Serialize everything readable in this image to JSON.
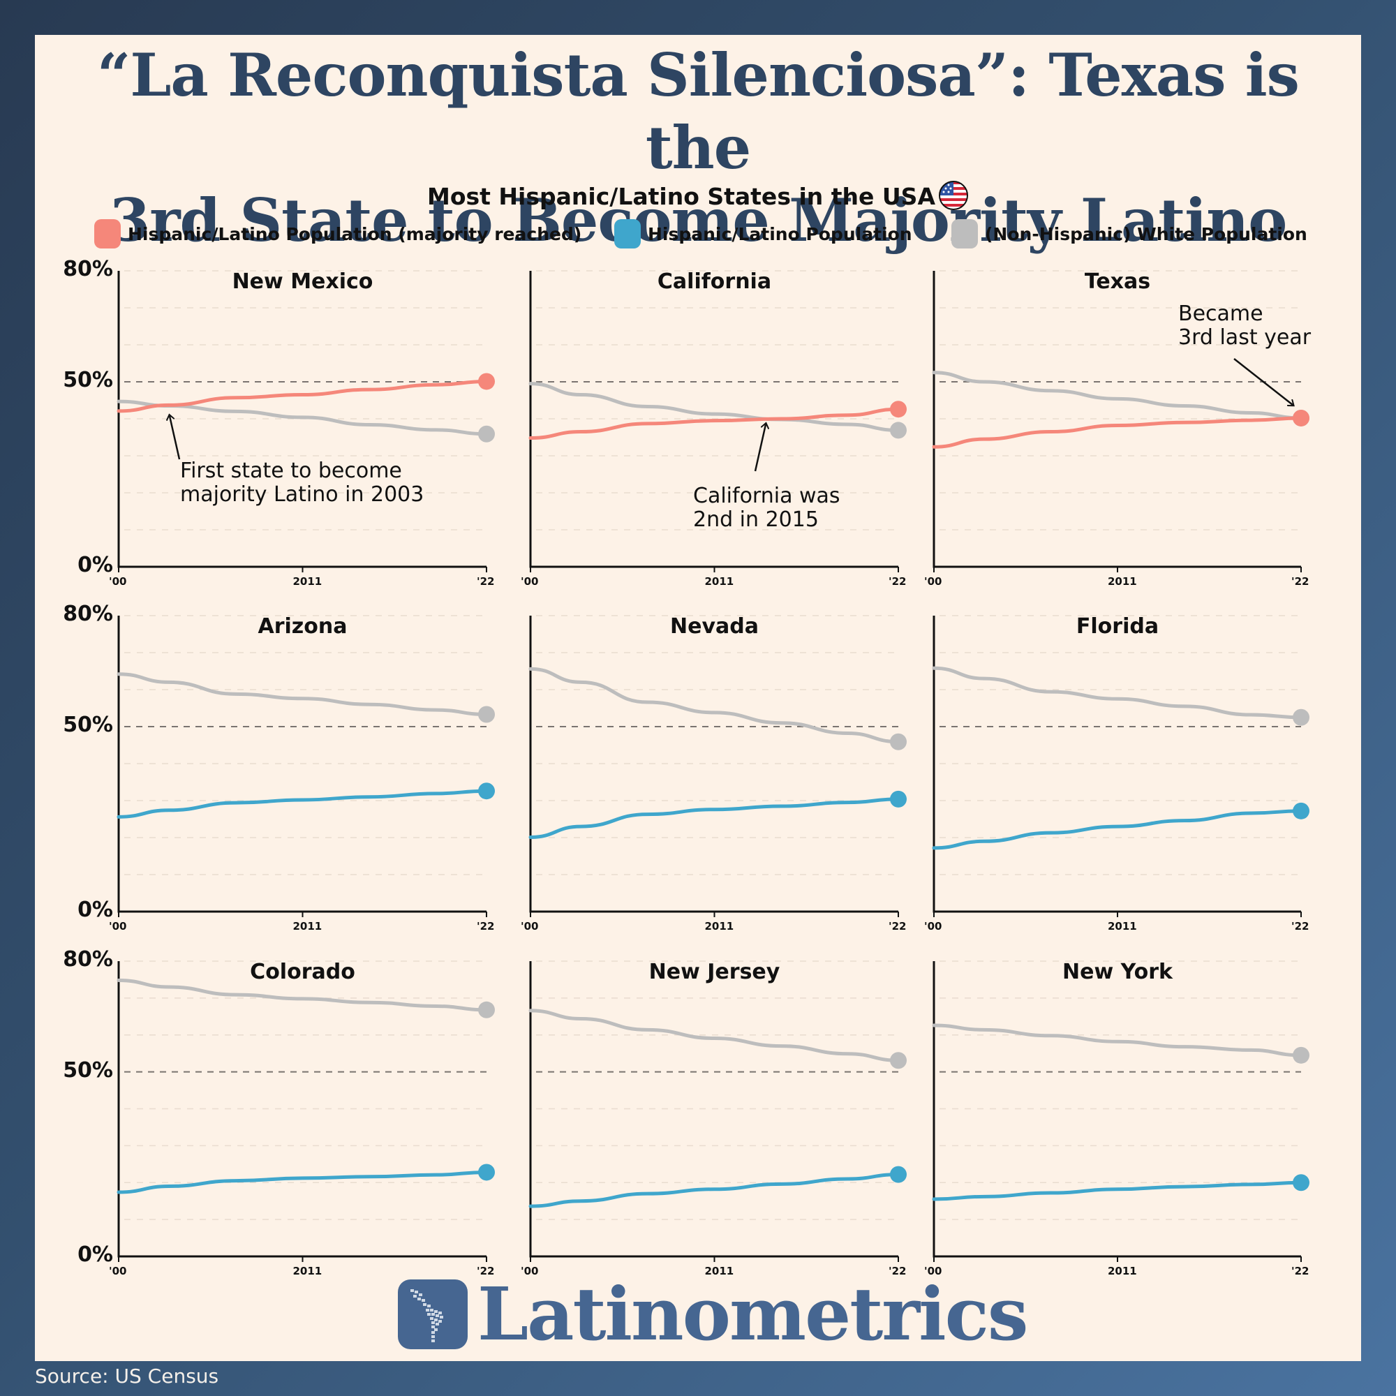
{
  "header": {
    "title_line1": "“La Reconquista Silenciosa”: Texas is the",
    "title_line2": "3rd State to Become Majority Latino",
    "subtitle": "Most Hispanic/Latino States in the USA",
    "flag_icon": "us-flag-icon"
  },
  "legend": [
    {
      "label": "Hispanic/Latino Population (majority reached)",
      "color": "#f5877a"
    },
    {
      "label": "Hispanic/Latino Population",
      "color": "#3fa6cc"
    },
    {
      "label": "(Non-Hispanic) White Population",
      "color": "#bdbdbd"
    }
  ],
  "axis": {
    "y_ticks": [
      "80%",
      "50%",
      "0%"
    ],
    "x_ticks": [
      "'00",
      "2011",
      "'22"
    ]
  },
  "annotations": {
    "new_mexico": [
      "First state to become",
      "majority Latino in 2003"
    ],
    "california": [
      "California was",
      "2nd in 2015"
    ],
    "texas": [
      "Became",
      "3rd last year"
    ]
  },
  "footer": {
    "brand": "Latinometrics",
    "source": "Source: US Census"
  },
  "colors": {
    "majority": "#f5877a",
    "hispanic": "#3fa6cc",
    "white": "#bdbdbd",
    "title": "#2e4562",
    "brand": "#466691",
    "card": "#fdf2e7"
  },
  "chart_data": {
    "type": "line",
    "title": "Most Hispanic/Latino States in the USA",
    "xlabel": "",
    "ylabel": "",
    "x": [
      2000,
      2003,
      2007,
      2011,
      2015,
      2019,
      2022
    ],
    "ylim": [
      0,
      80
    ],
    "y_ticks_labeled": [
      0,
      50,
      80
    ],
    "gridlines": [
      10,
      20,
      30,
      40,
      50,
      60,
      70,
      80
    ],
    "reference_line": 50,
    "panels": [
      {
        "state": "New Mexico",
        "majority": true,
        "series": [
          {
            "name": "Hispanic/Latino Population",
            "values": [
              42.1,
              43.7,
              45.7,
              46.5,
              47.9,
              49.2,
              50.1
            ]
          },
          {
            "name": "(Non-Hispanic) White Population",
            "values": [
              44.7,
              43.5,
              42.0,
              40.4,
              38.4,
              37.0,
              35.9
            ]
          }
        ]
      },
      {
        "state": "California",
        "majority": true,
        "series": [
          {
            "name": "Hispanic/Latino Population",
            "values": [
              34.8,
              36.5,
              38.7,
              39.5,
              40.0,
              41.0,
              42.6
            ]
          },
          {
            "name": "(Non-Hispanic) White Population",
            "values": [
              49.5,
              46.5,
              43.3,
              41.3,
              39.8,
              38.5,
              36.9
            ]
          }
        ]
      },
      {
        "state": "Texas",
        "majority": true,
        "series": [
          {
            "name": "Hispanic/Latino Population",
            "values": [
              32.4,
              34.5,
              36.5,
              38.2,
              39.0,
              39.6,
              40.2
            ]
          },
          {
            "name": "(Non-Hispanic) White Population",
            "values": [
              52.5,
              50.0,
              47.6,
              45.4,
              43.5,
              41.6,
              40.2
            ]
          }
        ]
      },
      {
        "state": "Arizona",
        "majority": false,
        "series": [
          {
            "name": "Hispanic/Latino Population",
            "values": [
              25.6,
              27.4,
              29.4,
              30.2,
              31.0,
              31.9,
              32.6
            ]
          },
          {
            "name": "(Non-Hispanic) White Population",
            "values": [
              64.2,
              62.0,
              58.8,
              57.6,
              56.0,
              54.5,
              53.3
            ]
          }
        ]
      },
      {
        "state": "Nevada",
        "majority": false,
        "series": [
          {
            "name": "Hispanic/Latino Population",
            "values": [
              20.1,
              23.0,
              26.3,
              27.6,
              28.5,
              29.5,
              30.4
            ]
          },
          {
            "name": "(Non-Hispanic) White Population",
            "values": [
              65.6,
              62.0,
              56.6,
              53.8,
              51.0,
              48.2,
              45.9
            ]
          }
        ]
      },
      {
        "state": "Florida",
        "majority": false,
        "series": [
          {
            "name": "Hispanic/Latino Population",
            "values": [
              17.2,
              19.0,
              21.3,
              23.0,
              24.6,
              26.6,
              27.2
            ]
          },
          {
            "name": "(Non-Hispanic) White Population",
            "values": [
              65.8,
              63.0,
              59.4,
              57.5,
              55.5,
              53.2,
              52.5
            ]
          }
        ]
      },
      {
        "state": "Colorado",
        "majority": false,
        "series": [
          {
            "name": "Hispanic/Latino Population",
            "values": [
              17.4,
              19.0,
              20.5,
              21.2,
              21.6,
              22.1,
              22.8
            ]
          },
          {
            "name": "(Non-Hispanic) White Population",
            "values": [
              74.8,
              73.0,
              70.9,
              69.8,
              68.8,
              67.8,
              66.8
            ]
          }
        ]
      },
      {
        "state": "New Jersey",
        "majority": false,
        "series": [
          {
            "name": "Hispanic/Latino Population",
            "values": [
              13.6,
              15.0,
              17.0,
              18.2,
              19.6,
              21.0,
              22.2
            ]
          },
          {
            "name": "(Non-Hispanic) White Population",
            "values": [
              66.6,
              64.4,
              61.4,
              59.1,
              57.0,
              54.9,
              53.1
            ]
          }
        ]
      },
      {
        "state": "New York",
        "majority": false,
        "series": [
          {
            "name": "Hispanic/Latino Population",
            "values": [
              15.5,
              16.2,
              17.2,
              18.2,
              18.9,
              19.5,
              20.0
            ]
          },
          {
            "name": "(Non-Hispanic) White Population",
            "values": [
              62.6,
              61.4,
              59.8,
              58.2,
              56.8,
              55.9,
              54.5
            ]
          }
        ]
      }
    ]
  }
}
